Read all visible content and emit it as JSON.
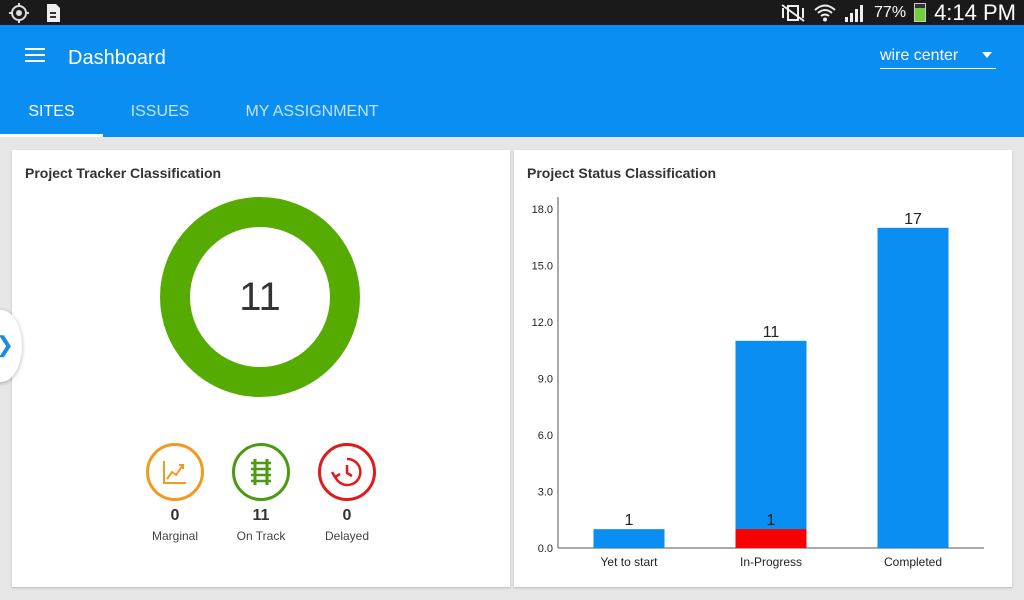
{
  "status_bar": {
    "battery_percent": "77%",
    "time": "4:14 PM",
    "colors": {
      "background": "#1a1a1a",
      "battery_fill": "#6fd03a"
    }
  },
  "app_bar": {
    "title": "Dashboard",
    "selector_value": "wire center",
    "color": "#0b8ef1"
  },
  "tabs": [
    {
      "label": "SITES",
      "active": true
    },
    {
      "label": "ISSUES",
      "active": false
    },
    {
      "label": "MY ASSIGNMENT",
      "active": false
    }
  ],
  "tracker_card": {
    "title": "Project Tracker Classification",
    "total": "11",
    "donut_color": "#55ab00",
    "stats": [
      {
        "count": "0",
        "label": "Marginal",
        "icon": "trend-chart-icon",
        "color": "#f39a1e"
      },
      {
        "count": "11",
        "label": "On Track",
        "icon": "railway-track-icon",
        "color": "#4a9a12"
      },
      {
        "count": "0",
        "label": "Delayed",
        "icon": "clock-delayed-icon",
        "color": "#e01b1b"
      }
    ]
  },
  "status_card": {
    "title": "Project Status Classification"
  },
  "chart_data": {
    "type": "bar",
    "categories": [
      "Yet to start",
      "In-Progress",
      "Completed"
    ],
    "series": [
      {
        "values": [
          1,
          11,
          17
        ],
        "color": "#0b8ef1"
      },
      {
        "values": [
          0,
          1,
          0
        ],
        "color": "#f80000"
      }
    ],
    "data_labels": [
      {
        "category": "Yet to start",
        "text": "1"
      },
      {
        "category": "In-Progress",
        "text": "11"
      },
      {
        "category": "In-Progress",
        "text": "1"
      },
      {
        "category": "Completed",
        "text": "17"
      }
    ],
    "title": "",
    "xlabel": "",
    "ylabel": "",
    "ylim": [
      0,
      18
    ],
    "yticks": [
      "0.0",
      "3.0",
      "6.0",
      "9.0",
      "12.0",
      "15.0",
      "18.0"
    ],
    "grid": false,
    "legend": "none"
  }
}
